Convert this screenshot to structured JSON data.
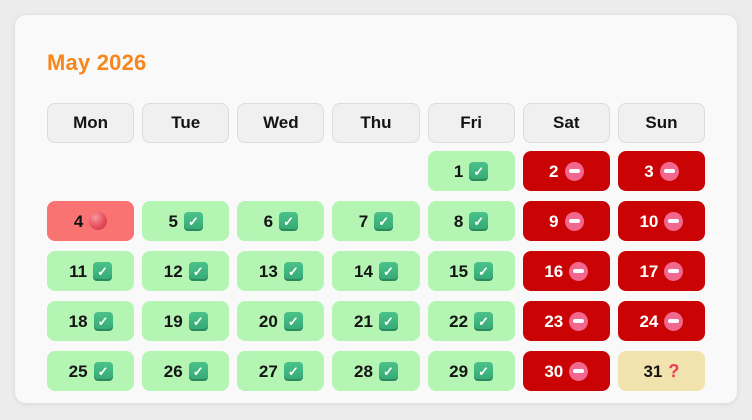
{
  "page": {
    "background_color": "#ececec",
    "card_background_color": "#f9f9f9"
  },
  "header": {
    "title": "May 2026",
    "title_color": "#f7871d"
  },
  "weekdays": [
    "Mon",
    "Tue",
    "Wed",
    "Thu",
    "Fri",
    "Sat",
    "Sun"
  ],
  "calendar": {
    "rows": 5,
    "cols": 7,
    "cells": [
      {
        "day": "",
        "state": "empty",
        "icon": ""
      },
      {
        "day": "",
        "state": "empty",
        "icon": ""
      },
      {
        "day": "",
        "state": "empty",
        "icon": ""
      },
      {
        "day": "",
        "state": "empty",
        "icon": ""
      },
      {
        "day": "1",
        "state": "available",
        "icon": "check-icon"
      },
      {
        "day": "2",
        "state": "blocked",
        "icon": "no-entry-icon"
      },
      {
        "day": "3",
        "state": "blocked",
        "icon": "no-entry-icon"
      },
      {
        "day": "4",
        "state": "special",
        "icon": "red-circle-icon"
      },
      {
        "day": "5",
        "state": "available",
        "icon": "check-icon"
      },
      {
        "day": "6",
        "state": "available",
        "icon": "check-icon"
      },
      {
        "day": "7",
        "state": "available",
        "icon": "check-icon"
      },
      {
        "day": "8",
        "state": "available",
        "icon": "check-icon"
      },
      {
        "day": "9",
        "state": "blocked",
        "icon": "no-entry-icon"
      },
      {
        "day": "10",
        "state": "blocked",
        "icon": "no-entry-icon"
      },
      {
        "day": "11",
        "state": "available",
        "icon": "check-icon"
      },
      {
        "day": "12",
        "state": "available",
        "icon": "check-icon"
      },
      {
        "day": "13",
        "state": "available",
        "icon": "check-icon"
      },
      {
        "day": "14",
        "state": "available",
        "icon": "check-icon"
      },
      {
        "day": "15",
        "state": "available",
        "icon": "check-icon"
      },
      {
        "day": "16",
        "state": "blocked",
        "icon": "no-entry-icon"
      },
      {
        "day": "17",
        "state": "blocked",
        "icon": "no-entry-icon"
      },
      {
        "day": "18",
        "state": "available",
        "icon": "check-icon"
      },
      {
        "day": "19",
        "state": "available",
        "icon": "check-icon"
      },
      {
        "day": "20",
        "state": "available",
        "icon": "check-icon"
      },
      {
        "day": "21",
        "state": "available",
        "icon": "check-icon"
      },
      {
        "day": "22",
        "state": "available",
        "icon": "check-icon"
      },
      {
        "day": "23",
        "state": "blocked",
        "icon": "no-entry-icon"
      },
      {
        "day": "24",
        "state": "blocked",
        "icon": "no-entry-icon"
      },
      {
        "day": "25",
        "state": "available",
        "icon": "check-icon"
      },
      {
        "day": "26",
        "state": "available",
        "icon": "check-icon"
      },
      {
        "day": "27",
        "state": "available",
        "icon": "check-icon"
      },
      {
        "day": "28",
        "state": "available",
        "icon": "check-icon"
      },
      {
        "day": "29",
        "state": "available",
        "icon": "check-icon"
      },
      {
        "day": "30",
        "state": "blocked",
        "icon": "no-entry-icon"
      },
      {
        "day": "31",
        "state": "unknown",
        "icon": "question-icon"
      }
    ]
  },
  "colors": {
    "available_bg": "#b4f5b4",
    "blocked_bg": "#ca0404",
    "special_bg": "#f97373",
    "unknown_bg": "#f2e3ae",
    "weekday_header_bg": "#f0f0f0",
    "check_icon_green": "#3cb377",
    "no_entry_icon_pink": "#f2678e",
    "red_circle_icon_red": "#e44f5b",
    "question_icon_red": "#ef3b5d",
    "blocked_text": "#ffffff",
    "day_text": "#141414"
  }
}
